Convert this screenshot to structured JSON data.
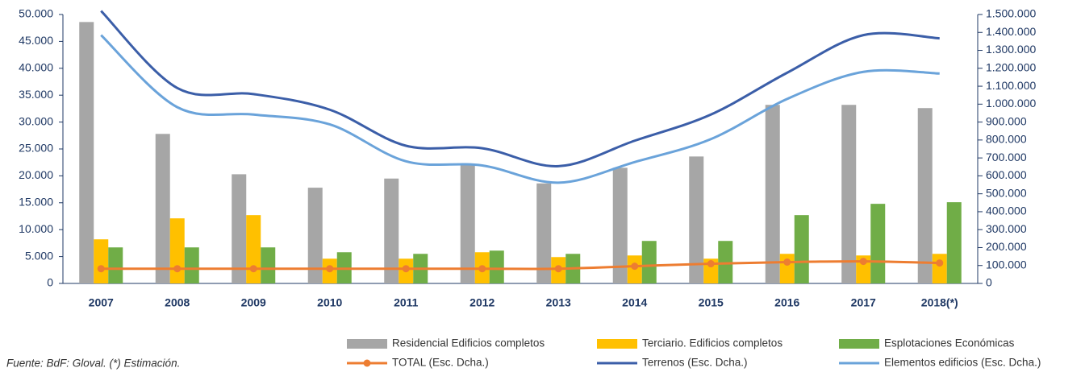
{
  "chart_data": {
    "type": "bar",
    "categories": [
      "2007",
      "2008",
      "2009",
      "2010",
      "2011",
      "2012",
      "2013",
      "2014",
      "2015",
      "2016",
      "2017",
      "2018(*)"
    ],
    "series": [
      {
        "name": "Residencial Edificios completos",
        "color": "#a6a6a6",
        "type": "bar",
        "values": [
          48600,
          27800,
          20300,
          17800,
          19500,
          22000,
          18600,
          21500,
          23600,
          33200,
          33200,
          32600
        ]
      },
      {
        "name": "Terciario. Edificios completos",
        "color": "#ffc000",
        "type": "bar",
        "values": [
          8200,
          12100,
          12700,
          4600,
          4600,
          5800,
          4900,
          5200,
          4600,
          5500,
          5200,
          5500
        ]
      },
      {
        "name": "Esplotaciones Económicas",
        "color": "#70ad47",
        "type": "bar",
        "values": [
          6700,
          6700,
          6700,
          5800,
          5500,
          6100,
          5500,
          7900,
          7900,
          12700,
          14800,
          15100
        ]
      },
      {
        "name": "TOTAL (Esc. Dcha.)",
        "color": "#ed7d31",
        "type": "line",
        "axis": "y2",
        "values": [
          82000,
          82000,
          82000,
          82000,
          82000,
          82000,
          82000,
          96000,
          110000,
          119000,
          123000,
          114000
        ]
      },
      {
        "name": "Terrenos (Esc. Dcha.)",
        "color": "#3b5ea8",
        "type": "line",
        "axis": "y2",
        "values": [
          1520000,
          1090000,
          1056000,
          969000,
          768000,
          754000,
          654000,
          796000,
          942000,
          1175000,
          1385000,
          1367000
        ]
      },
      {
        "name": "Elementos edificios (Esc. Dcha.)",
        "color": "#6aa3da",
        "type": "line",
        "axis": "y2",
        "values": [
          1385000,
          983000,
          942000,
          887000,
          681000,
          658000,
          562000,
          677000,
          805000,
          1029000,
          1180000,
          1171000
        ]
      }
    ],
    "ylim": [
      0,
      50000
    ],
    "yticks": [
      0,
      {
        "value": 5000,
        "label": "5.000"
      },
      {
        "value": 10000,
        "label": "10.000"
      },
      {
        "value": 15000,
        "label": "15.000"
      },
      {
        "value": 20000,
        "label": "20.000"
      },
      {
        "value": 25000,
        "label": "25.000"
      },
      {
        "value": 30000,
        "label": "30.000"
      },
      {
        "value": 35000,
        "label": "35.000"
      },
      {
        "value": 40000,
        "label": "40.000"
      },
      {
        "value": 45000,
        "label": "45.000"
      },
      {
        "value": 50000,
        "label": "50.000"
      }
    ],
    "y2lim": [
      0,
      1500000
    ],
    "y2ticks": [
      0,
      {
        "value": 100000,
        "label": "100.000"
      },
      {
        "value": 200000,
        "label": "200.000"
      },
      {
        "value": 300000,
        "label": "300.000"
      },
      {
        "value": 400000,
        "label": "400.000"
      },
      {
        "value": 500000,
        "label": "500.000"
      },
      {
        "value": 600000,
        "label": "600.000"
      },
      {
        "value": 700000,
        "label": "700.000"
      },
      {
        "value": 800000,
        "label": "800.000"
      },
      {
        "value": 900000,
        "label": "900.000"
      },
      {
        "value": 1000000,
        "label": "1.000.000"
      },
      {
        "value": 1100000,
        "label": "1.100.000"
      },
      {
        "value": 1200000,
        "label": "1.200.000"
      },
      {
        "value": 1300000,
        "label": "1.300.000"
      },
      {
        "value": 1400000,
        "label": "1.400.000"
      },
      {
        "value": 1500000,
        "label": "1.500.000"
      }
    ],
    "footnote": "Fuente: BdF: Gloval. (*) Estimación."
  }
}
